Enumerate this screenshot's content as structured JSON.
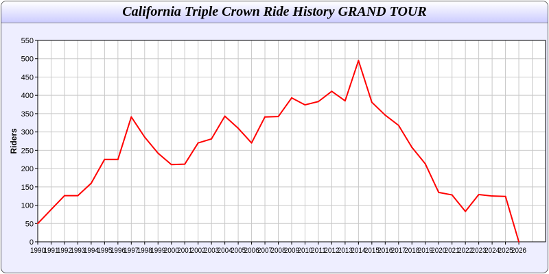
{
  "chart_data": {
    "type": "line",
    "title": "California Triple Crown Ride History GRAND TOUR",
    "xlabel": "",
    "ylabel": "Riders",
    "x": [
      1990,
      1991,
      1992,
      1993,
      1994,
      1995,
      1996,
      1997,
      1998,
      1999,
      2000,
      2001,
      2002,
      2003,
      2004,
      2005,
      2006,
      2007,
      2008,
      2009,
      2010,
      2011,
      2012,
      2013,
      2014,
      2015,
      2016,
      2017,
      2018,
      2019,
      2020,
      2021,
      2022,
      2023,
      2024,
      2025,
      2026
    ],
    "series": [
      {
        "values": [
          50,
          88,
          126,
          126,
          160,
          225,
          225,
          341,
          286,
          242,
          211,
          212,
          270,
          281,
          343,
          310,
          270,
          341,
          342,
          393,
          374,
          383,
          411,
          385,
          495,
          381,
          346,
          318,
          258,
          213,
          135,
          128,
          83,
          129,
          125,
          124,
          0
        ],
        "color": "#ff0000"
      }
    ],
    "xlim": [
      1990,
      2028
    ],
    "ylim": [
      0,
      550
    ],
    "yticks": [
      0,
      50,
      100,
      150,
      200,
      250,
      300,
      350,
      400,
      450,
      500,
      550
    ],
    "grid": true,
    "legend": "none"
  }
}
